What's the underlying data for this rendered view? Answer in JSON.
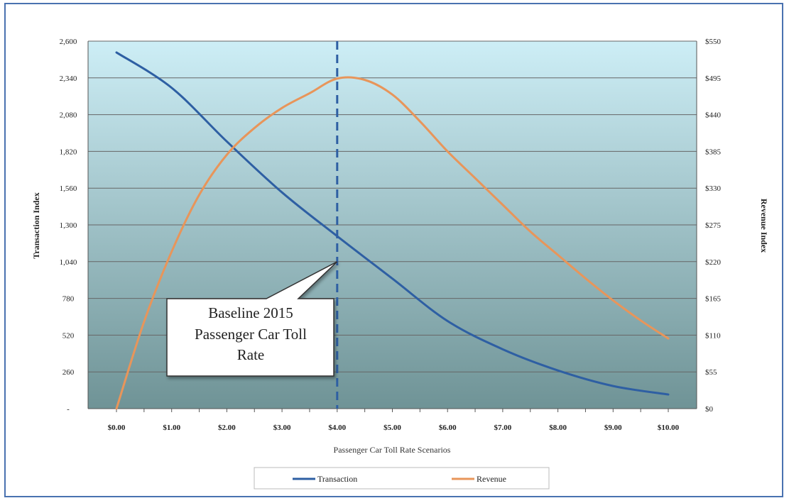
{
  "chart_data": {
    "type": "line",
    "title": "",
    "xlabel": "Passenger Car Toll Rate Scenarios",
    "ylabel_left": "Transaction Index",
    "ylabel_right": "Revenue Index",
    "categories": [
      "$0.00",
      "$1.00",
      "$2.00",
      "$3.00",
      "$4.00",
      "$5.00",
      "$6.00",
      "$7.00",
      "$8.00",
      "$9.00",
      "$10.00"
    ],
    "x": [
      0,
      1,
      2,
      3,
      4,
      5,
      6,
      7,
      8,
      9,
      10
    ],
    "y_left_ticks": [
      "-",
      "260",
      "520",
      "780",
      "1,040",
      "1,300",
      "1,560",
      "1,820",
      "2,080",
      "2,340",
      "2,600"
    ],
    "y_right_ticks": [
      "$0",
      "$55",
      "$110",
      "$165",
      "$220",
      "$275",
      "$330",
      "$385",
      "$440",
      "$495",
      "$550"
    ],
    "ylim_left": [
      0,
      2600
    ],
    "ylim_right": [
      0,
      550
    ],
    "series": [
      {
        "name": "Transaction",
        "axis": "left",
        "color": "#2e5fa3",
        "x": [
          0,
          1,
          2,
          3,
          4,
          5,
          6,
          7,
          8,
          9,
          10
        ],
        "values": [
          2520,
          2270,
          1890,
          1530,
          1220,
          920,
          620,
          420,
          270,
          160,
          100
        ]
      },
      {
        "name": "Revenue",
        "axis": "right",
        "color": "#e8955a",
        "x": [
          0,
          0.5,
          1,
          1.5,
          2,
          2.5,
          3,
          3.5,
          4,
          4.5,
          5,
          5.5,
          6,
          6.5,
          7,
          7.5,
          8,
          8.5,
          9,
          9.5,
          10
        ],
        "values": [
          0,
          130,
          235,
          320,
          380,
          420,
          450,
          472,
          494,
          492,
          470,
          430,
          385,
          345,
          305,
          265,
          230,
          195,
          162,
          132,
          105
        ]
      }
    ],
    "vertical_line_at": 4,
    "callout": {
      "lines": [
        "Baseline 2015",
        "Passenger Car Toll",
        "Rate"
      ]
    },
    "colors": {
      "bg_top": "#cdeef6",
      "bg_bottom": "#6f9396",
      "grid": "#666666",
      "border": "#4a72b0"
    },
    "grid": true,
    "legend_position": "bottom"
  }
}
